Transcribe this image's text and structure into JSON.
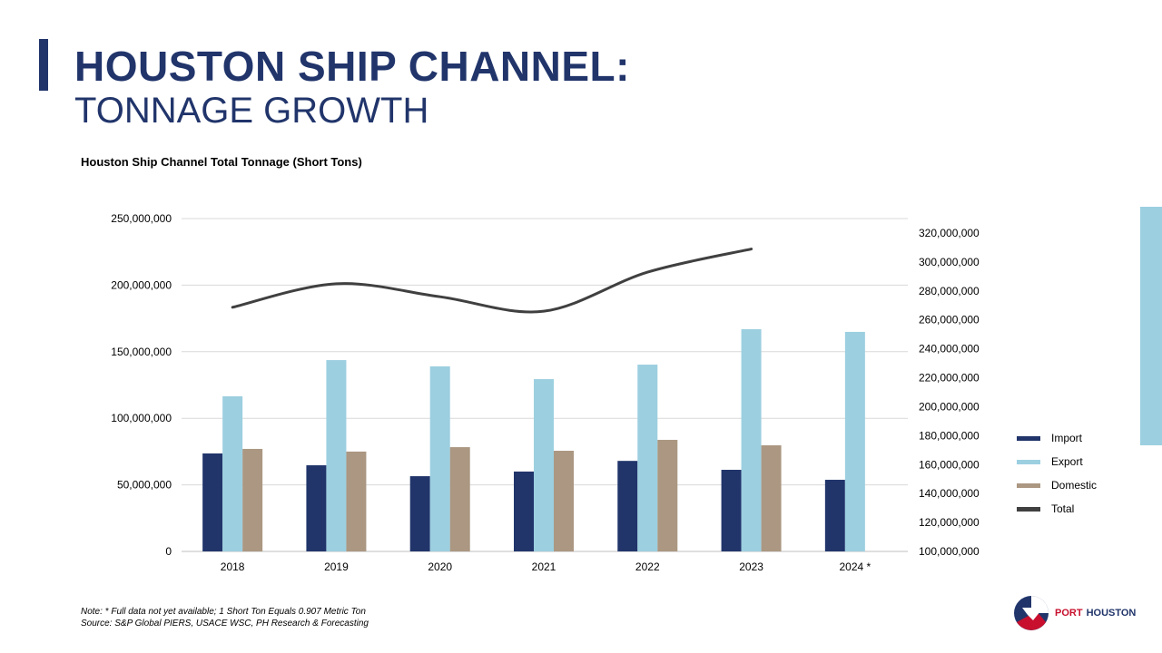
{
  "header": {
    "title": "HOUSTON SHIP CHANNEL:",
    "subtitle": "TONNAGE GROWTH"
  },
  "note": {
    "line1": "Note:  * Full data not yet available; 1 Short Ton Equals 0.907 Metric Ton",
    "line2": "Source:  S&P Global PIERS, USACE WSC, PH Research & Forecasting"
  },
  "logo": {
    "text_port": "PORT",
    "text_houston": "HOUSTON"
  },
  "colors": {
    "brand": "#21356b",
    "import": "#21356b",
    "export": "#9ccfe0",
    "domestic": "#ab9782",
    "total": "#404040",
    "logo_red": "#c8102e"
  },
  "chart_data": {
    "type": "bar+line",
    "title": "Houston Ship Channel Total Tonnage (Short Tons)",
    "categories": [
      "2018",
      "2019",
      "2020",
      "2021",
      "2022",
      "2023",
      "2024 *"
    ],
    "y_left": {
      "range": [
        0,
        250000000
      ],
      "ticks": [
        "0",
        "50,000,000",
        "100,000,000",
        "150,000,000",
        "200,000,000",
        "250,000,000"
      ]
    },
    "y_right": {
      "range": [
        100000000,
        320000000
      ],
      "ticks": [
        "100,000,000",
        "120,000,000",
        "140,000,000",
        "160,000,000",
        "180,000,000",
        "200,000,000",
        "220,000,000",
        "240,000,000",
        "260,000,000",
        "280,000,000",
        "300,000,000",
        "320,000,000"
      ]
    },
    "grid": true,
    "legend_position": "right",
    "series": [
      {
        "name": "Import",
        "type": "bar",
        "axis": "left",
        "values": [
          73600000,
          64700000,
          56500000,
          60000000,
          68000000,
          61300000,
          53800000
        ]
      },
      {
        "name": "Export",
        "type": "bar",
        "axis": "left",
        "values": [
          116500000,
          143700000,
          139000000,
          129400000,
          140300000,
          166900000,
          164900000
        ]
      },
      {
        "name": "Domestic",
        "type": "bar",
        "axis": "left",
        "values": [
          77000000,
          75000000,
          78300000,
          75600000,
          83800000,
          79700000,
          null
        ]
      },
      {
        "name": "Total",
        "type": "line",
        "axis": "right",
        "smooth": true,
        "values": [
          268700000,
          285000000,
          276000000,
          266000000,
          293000000,
          309000000,
          null
        ]
      }
    ]
  }
}
